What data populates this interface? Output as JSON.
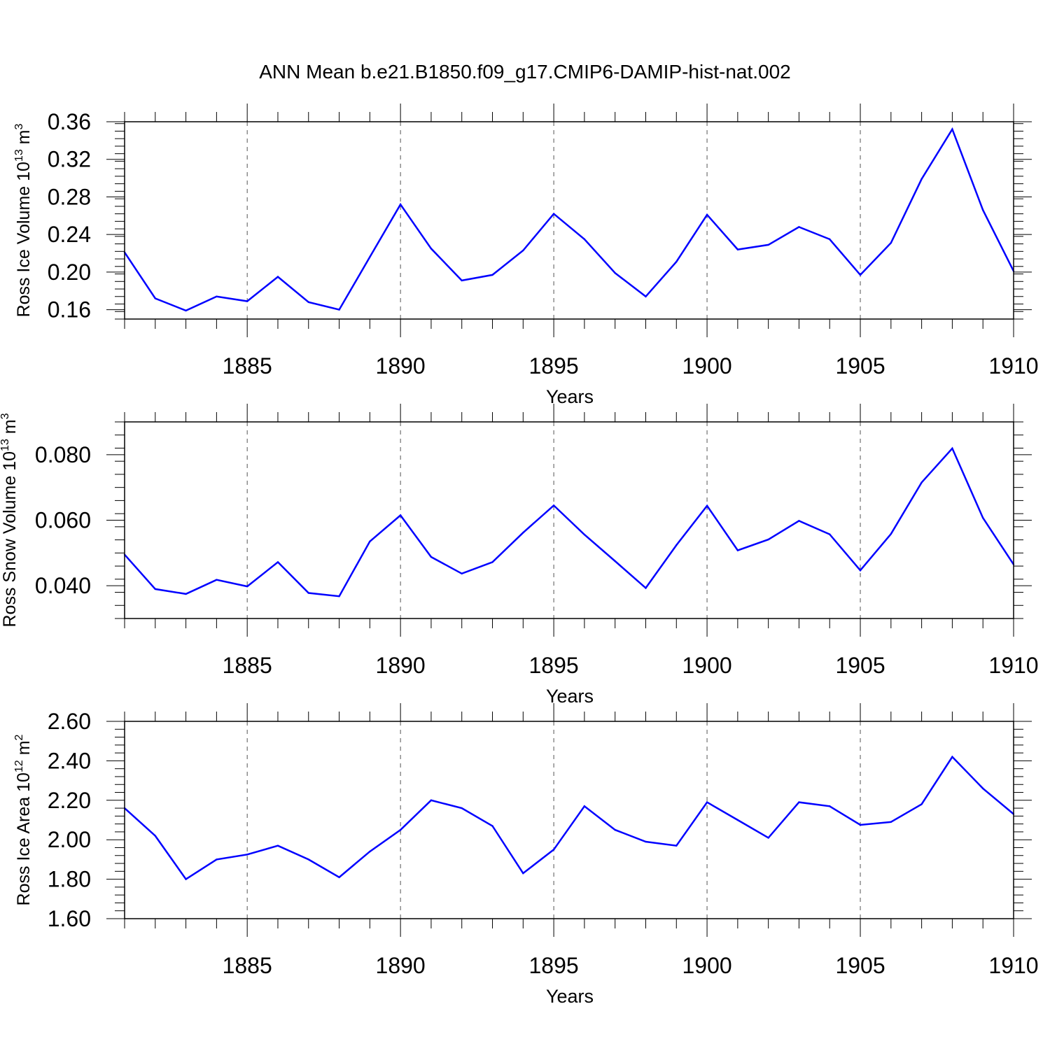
{
  "chart_title": "ANN Mean b.e21.B1850.f09_g17.CMIP6-DAMIP-hist-nat.002",
  "colors": {
    "line": "#0000ff",
    "axis": "#000000",
    "grid": "#555555"
  },
  "chart_data": [
    {
      "type": "line",
      "ylabel": {
        "text": "Ross Ice Volume 10",
        "exp": "13",
        "unit": "m",
        "unit_exp": "3"
      },
      "xlabel": "Years",
      "xlim": [
        1881,
        1910
      ],
      "ylim": [
        0.15,
        0.36
      ],
      "yticks": [
        0.16,
        0.2,
        0.24,
        0.28,
        0.32,
        0.36
      ],
      "ytick_labels": [
        "0.16",
        "0.20",
        "0.24",
        "0.28",
        "0.32",
        "0.36"
      ],
      "xticks": [
        1885,
        1890,
        1895,
        1900,
        1905,
        1910
      ],
      "xtick_labels": [
        "1885",
        "1890",
        "1895",
        "1900",
        "1905",
        "1910"
      ],
      "x": [
        1881,
        1882,
        1883,
        1884,
        1885,
        1886,
        1887,
        1888,
        1889,
        1890,
        1891,
        1892,
        1893,
        1894,
        1895,
        1896,
        1897,
        1898,
        1899,
        1900,
        1901,
        1902,
        1903,
        1904,
        1905,
        1906,
        1907,
        1908,
        1909,
        1910
      ],
      "values": [
        0.221,
        0.172,
        0.159,
        0.174,
        0.169,
        0.195,
        0.168,
        0.16,
        0.216,
        0.272,
        0.225,
        0.191,
        0.197,
        0.223,
        0.262,
        0.235,
        0.199,
        0.174,
        0.211,
        0.261,
        0.224,
        0.229,
        0.248,
        0.235,
        0.197,
        0.231,
        0.299,
        0.352,
        0.266,
        0.201
      ]
    },
    {
      "type": "line",
      "ylabel": {
        "text": "Ross Snow Volume 10",
        "exp": "13",
        "unit": "m",
        "unit_exp": "3"
      },
      "xlabel": "Years",
      "xlim": [
        1881,
        1910
      ],
      "ylim": [
        0.03,
        0.09
      ],
      "yticks": [
        0.04,
        0.06,
        0.08
      ],
      "ytick_labels": [
        "0.040",
        "0.060",
        "0.080"
      ],
      "xticks": [
        1885,
        1890,
        1895,
        1900,
        1905,
        1910
      ],
      "xtick_labels": [
        "1885",
        "1890",
        "1895",
        "1900",
        "1905",
        "1910"
      ],
      "x": [
        1881,
        1882,
        1883,
        1884,
        1885,
        1886,
        1887,
        1888,
        1889,
        1890,
        1891,
        1892,
        1893,
        1894,
        1895,
        1896,
        1897,
        1898,
        1899,
        1900,
        1901,
        1902,
        1903,
        1904,
        1905,
        1906,
        1907,
        1908,
        1909,
        1910
      ],
      "values": [
        0.0495,
        0.039,
        0.0375,
        0.0418,
        0.0398,
        0.0472,
        0.0378,
        0.0368,
        0.0535,
        0.0615,
        0.0488,
        0.0437,
        0.0472,
        0.0562,
        0.0645,
        0.0556,
        0.0475,
        0.0393,
        0.0524,
        0.0644,
        0.0508,
        0.0541,
        0.0598,
        0.0557,
        0.0447,
        0.0558,
        0.0715,
        0.0819,
        0.0607,
        0.0465
      ]
    },
    {
      "type": "line",
      "ylabel": {
        "text": "Ross Ice Area 10",
        "exp": "12",
        "unit": "m",
        "unit_exp": "2"
      },
      "xlabel": "Years",
      "xlim": [
        1881,
        1910
      ],
      "ylim": [
        1.6,
        2.6
      ],
      "yticks": [
        1.6,
        1.8,
        2.0,
        2.2,
        2.4,
        2.6
      ],
      "ytick_labels": [
        "1.60",
        "1.80",
        "2.00",
        "2.20",
        "2.40",
        "2.60"
      ],
      "xticks": [
        1885,
        1890,
        1895,
        1900,
        1905,
        1910
      ],
      "xtick_labels": [
        "1885",
        "1890",
        "1895",
        "1900",
        "1905",
        "1910"
      ],
      "x": [
        1881,
        1882,
        1883,
        1884,
        1885,
        1886,
        1887,
        1888,
        1889,
        1890,
        1891,
        1892,
        1893,
        1894,
        1895,
        1896,
        1897,
        1898,
        1899,
        1900,
        1901,
        1902,
        1903,
        1904,
        1905,
        1906,
        1907,
        1908,
        1909,
        1910
      ],
      "values": [
        2.16,
        2.02,
        1.8,
        1.9,
        1.925,
        1.97,
        1.9,
        1.81,
        1.94,
        2.05,
        2.2,
        2.16,
        2.07,
        1.83,
        1.95,
        2.17,
        2.05,
        1.99,
        1.97,
        2.19,
        2.1,
        2.01,
        2.19,
        2.17,
        2.075,
        2.09,
        2.18,
        2.42,
        2.26,
        2.13
      ]
    }
  ]
}
